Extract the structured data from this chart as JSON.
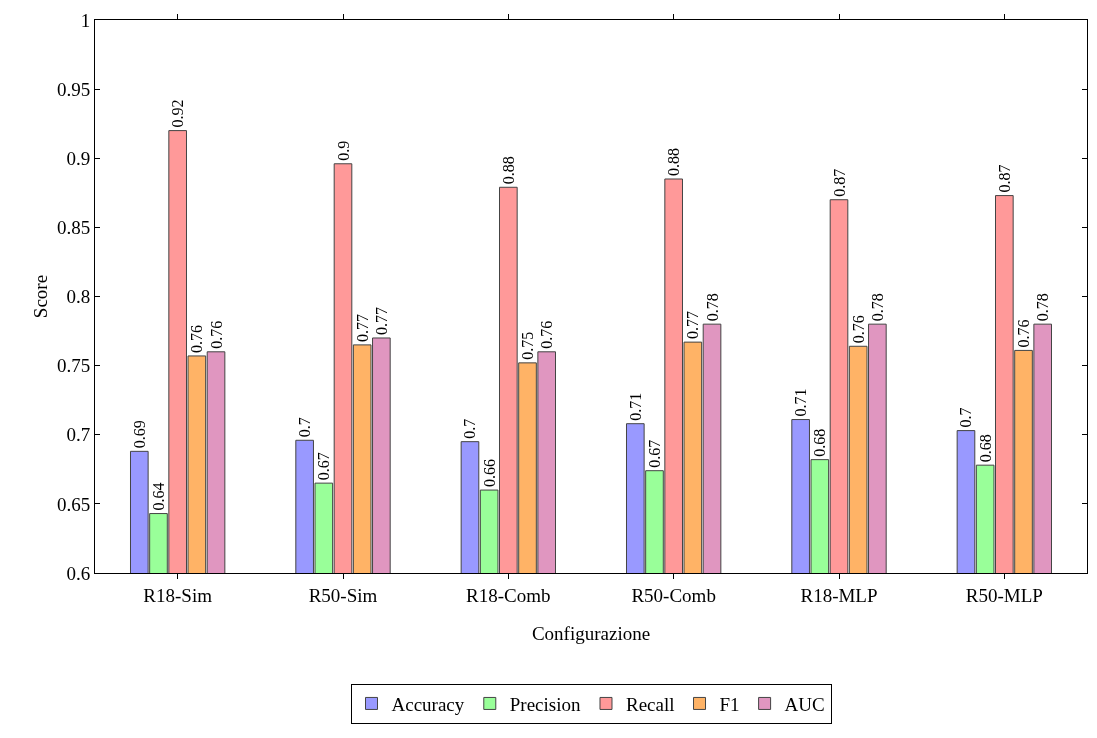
{
  "chart_data": {
    "type": "bar",
    "xlabel": "Configurazione",
    "ylabel": "Score",
    "categories": [
      "R18-Sim",
      "R50-Sim",
      "R18-Comb",
      "R50-Comb",
      "R18-MLP",
      "R50-MLP"
    ],
    "series": [
      {
        "name": "Accuracy",
        "color": "#9999ff",
        "values": [
          0.688,
          0.696,
          0.695,
          0.708,
          0.711,
          0.703
        ],
        "value_labels": [
          "0.69",
          "0.7",
          "0.7",
          "0.71",
          "0.71",
          "0.7"
        ]
      },
      {
        "name": "Precision",
        "color": "#99ff99",
        "values": [
          0.643,
          0.665,
          0.66,
          0.674,
          0.682,
          0.678
        ],
        "value_labels": [
          "0.64",
          "0.67",
          "0.66",
          "0.67",
          "0.68",
          "0.68"
        ]
      },
      {
        "name": "Recall",
        "color": "#ff9999",
        "values": [
          0.92,
          0.896,
          0.879,
          0.885,
          0.87,
          0.873
        ],
        "value_labels": [
          "0.92",
          "0.9",
          "0.88",
          "0.88",
          "0.87",
          "0.87"
        ]
      },
      {
        "name": "F1",
        "color": "#ffb366",
        "values": [
          0.757,
          0.765,
          0.752,
          0.767,
          0.764,
          0.761
        ],
        "value_labels": [
          "0.76",
          "0.77",
          "0.75",
          "0.77",
          "0.76",
          "0.76"
        ]
      },
      {
        "name": "AUC",
        "color": "#e096c0",
        "values": [
          0.76,
          0.77,
          0.76,
          0.78,
          0.78,
          0.78
        ],
        "value_labels": [
          "0.76",
          "0.77",
          "0.76",
          "0.78",
          "0.78",
          "0.78"
        ]
      }
    ],
    "ylim": [
      0.6,
      1
    ],
    "yticks": [
      0.6,
      0.65,
      0.7,
      0.75,
      0.8,
      0.85,
      0.9,
      0.95,
      1
    ],
    "grid": false,
    "legend": "bottom"
  }
}
